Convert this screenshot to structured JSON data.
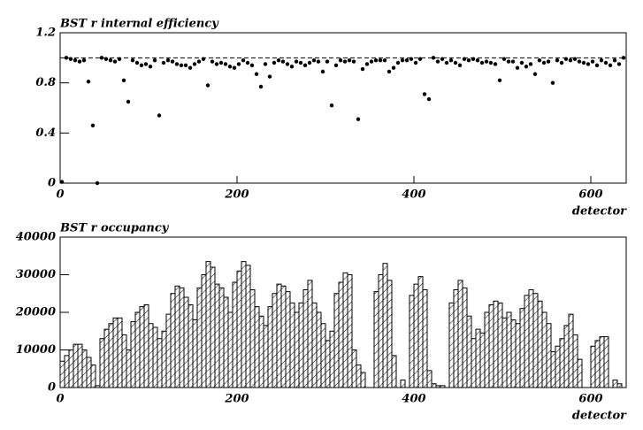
{
  "chart_data": [
    {
      "type": "scatter",
      "title": "BST r internal efficiency",
      "xlabel": "detector",
      "x": [
        2,
        7,
        12,
        17,
        22,
        27,
        32,
        37,
        42,
        47,
        52,
        57,
        62,
        67,
        72,
        77,
        82,
        87,
        92,
        97,
        102,
        107,
        112,
        117,
        122,
        127,
        132,
        137,
        142,
        147,
        152,
        157,
        162,
        167,
        172,
        177,
        182,
        187,
        192,
        197,
        202,
        207,
        212,
        217,
        222,
        227,
        232,
        237,
        242,
        247,
        252,
        257,
        262,
        267,
        272,
        277,
        282,
        287,
        292,
        297,
        302,
        307,
        312,
        317,
        322,
        327,
        332,
        337,
        342,
        347,
        352,
        357,
        362,
        367,
        372,
        377,
        382,
        387,
        392,
        397,
        402,
        407,
        412,
        417,
        422,
        427,
        432,
        437,
        442,
        447,
        452,
        457,
        462,
        467,
        472,
        477,
        482,
        487,
        492,
        497,
        502,
        507,
        512,
        517,
        522,
        527,
        532,
        537,
        542,
        547,
        552,
        557,
        562,
        567,
        572,
        577,
        582,
        587,
        592,
        597,
        602,
        607,
        612,
        617,
        622,
        627,
        632,
        637
      ],
      "values": [
        0.01,
        1.0,
        0.99,
        0.98,
        0.97,
        0.98,
        0.81,
        0.46,
        0.0,
        1.0,
        0.99,
        0.98,
        0.97,
        0.99,
        0.82,
        0.65,
        0.98,
        0.96,
        0.94,
        0.95,
        0.93,
        0.98,
        0.54,
        0.96,
        0.98,
        0.97,
        0.95,
        0.94,
        0.94,
        0.92,
        0.95,
        0.97,
        0.99,
        0.78,
        0.97,
        0.95,
        0.96,
        0.95,
        0.93,
        0.92,
        0.95,
        0.98,
        0.96,
        0.94,
        0.87,
        0.77,
        0.95,
        0.85,
        0.96,
        0.98,
        0.97,
        0.95,
        0.93,
        0.97,
        0.96,
        0.94,
        0.96,
        0.98,
        0.97,
        0.89,
        0.97,
        0.62,
        0.94,
        0.98,
        0.97,
        0.98,
        0.97,
        0.51,
        0.91,
        0.95,
        0.97,
        0.98,
        0.98,
        0.98,
        0.89,
        0.92,
        0.96,
        0.98,
        0.98,
        0.99,
        0.96,
        0.99,
        0.71,
        0.67,
        1.0,
        0.97,
        0.99,
        0.96,
        0.98,
        0.96,
        0.94,
        0.99,
        0.98,
        0.99,
        0.98,
        0.96,
        0.97,
        0.96,
        0.95,
        0.82,
        0.99,
        0.97,
        0.97,
        0.92,
        0.96,
        0.93,
        0.95,
        0.87,
        0.98,
        0.96,
        0.97,
        0.8,
        0.98,
        0.96,
        0.99,
        0.98,
        0.99,
        0.97,
        0.96,
        0.95,
        0.97,
        0.94,
        0.98,
        0.96,
        0.94,
        0.98,
        0.95,
        1.0
      ],
      "color": "#000000",
      "hline": 1,
      "xlim": [
        0,
        640
      ],
      "xticks": [
        0,
        200,
        400,
        600
      ],
      "ylim": [
        0,
        1.2
      ],
      "yticks": [
        0,
        0.4,
        0.8,
        1.2
      ]
    },
    {
      "type": "histogram",
      "title": "BST r occupancy",
      "xlabel": "detector",
      "bins": [
        0,
        5,
        10,
        15,
        20,
        25,
        30,
        35,
        40,
        45,
        50,
        55,
        60,
        65,
        70,
        75,
        80,
        85,
        90,
        95,
        100,
        105,
        110,
        115,
        120,
        125,
        130,
        135,
        140,
        145,
        150,
        155,
        160,
        165,
        170,
        175,
        180,
        185,
        190,
        195,
        200,
        205,
        210,
        215,
        220,
        225,
        230,
        235,
        240,
        245,
        250,
        255,
        260,
        265,
        270,
        275,
        280,
        285,
        290,
        295,
        300,
        305,
        310,
        315,
        320,
        325,
        330,
        335,
        340,
        345,
        350,
        355,
        360,
        365,
        370,
        375,
        380,
        385,
        390,
        395,
        400,
        405,
        410,
        415,
        420,
        425,
        430,
        435,
        440,
        445,
        450,
        455,
        460,
        465,
        470,
        475,
        480,
        485,
        490,
        495,
        500,
        505,
        510,
        515,
        520,
        525,
        530,
        535,
        540,
        545,
        550,
        555,
        560,
        565,
        570,
        575,
        580,
        585,
        590,
        595,
        600,
        605,
        610,
        615,
        620,
        625,
        630,
        635,
        640
      ],
      "values": [
        7000,
        8500,
        10000,
        11500,
        11500,
        10000,
        8000,
        6000,
        500,
        13000,
        15500,
        17000,
        18500,
        18500,
        14000,
        10000,
        17500,
        20000,
        21500,
        22000,
        17000,
        16000,
        13000,
        15000,
        19500,
        25000,
        27000,
        26500,
        24000,
        22000,
        18000,
        26500,
        30000,
        33500,
        32000,
        27500,
        26500,
        24000,
        20000,
        28000,
        31000,
        33500,
        32500,
        26000,
        21500,
        19000,
        16500,
        21500,
        25000,
        27500,
        27000,
        25500,
        22500,
        20000,
        22500,
        26000,
        28500,
        22500,
        20000,
        17000,
        12500,
        15000,
        25000,
        28000,
        30500,
        30000,
        10000,
        6000,
        4000,
        0,
        0,
        25500,
        30000,
        33000,
        28500,
        8500,
        0,
        2000,
        0,
        24500,
        27500,
        29500,
        26000,
        4500,
        1000,
        500,
        500,
        0,
        22500,
        26000,
        28500,
        26500,
        19000,
        13000,
        15500,
        14500,
        20000,
        22000,
        23000,
        22500,
        18500,
        20000,
        18000,
        17000,
        21000,
        24500,
        26000,
        25000,
        23000,
        20000,
        17000,
        9500,
        11000,
        13000,
        16500,
        19500,
        14000,
        7500,
        0,
        0,
        11000,
        12500,
        13500,
        13500,
        0,
        2000,
        1000,
        0
      ],
      "color": "#000000",
      "xlim": [
        0,
        640
      ],
      "xticks": [
        0,
        200,
        400,
        600
      ],
      "ylim": [
        0,
        40000
      ],
      "yticks": [
        0,
        10000,
        20000,
        30000,
        40000
      ]
    }
  ]
}
